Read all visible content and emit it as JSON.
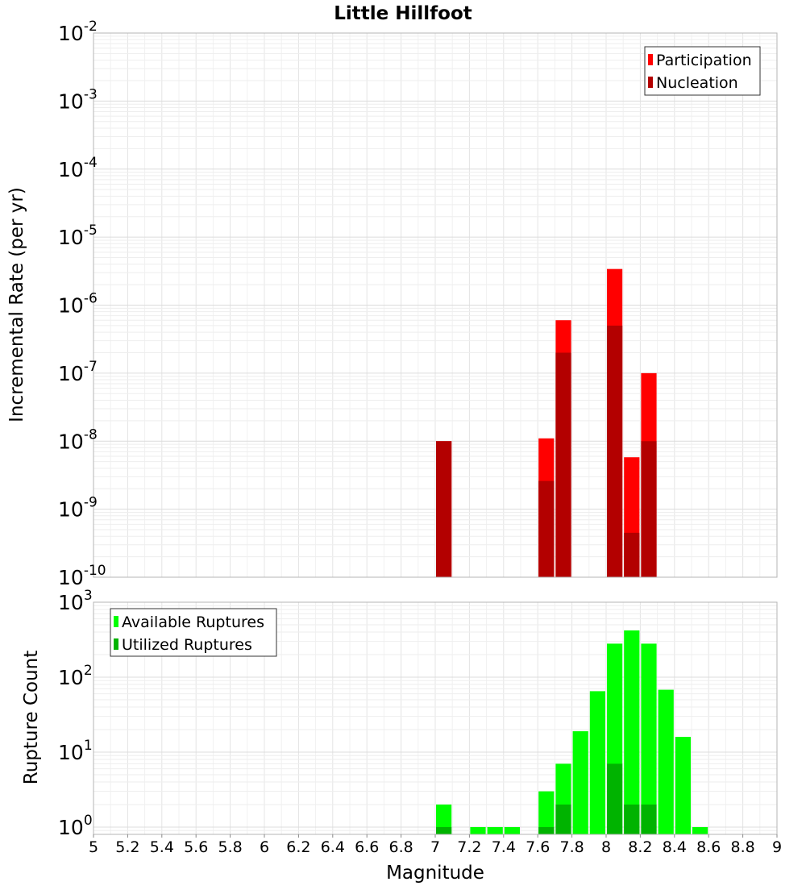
{
  "chart_data": [
    {
      "type": "bar",
      "title": "Little Hillfoot",
      "xlabel": "",
      "ylabel": "Incremental Rate (per yr)",
      "xlim": [
        5,
        9
      ],
      "ylim": [
        1e-10,
        0.01
      ],
      "y_scale": "log",
      "grid": true,
      "legend_position": "top-right",
      "bin_width": 0.1,
      "series": [
        {
          "name": "Participation",
          "color": "#ff0000",
          "x": [
            7.05,
            7.65,
            7.75,
            8.05,
            8.15,
            8.25
          ],
          "values": [
            1e-08,
            1.1e-08,
            6e-07,
            3.4e-06,
            5.8e-09,
            1e-07
          ]
        },
        {
          "name": "Nucleation",
          "color": "#b30000",
          "x": [
            7.05,
            7.65,
            7.75,
            8.05,
            8.15,
            8.25
          ],
          "values": [
            1e-08,
            2.6e-09,
            2e-07,
            5e-07,
            4.5e-10,
            1e-08
          ]
        }
      ],
      "y_tick_exponents": [
        -10,
        -9,
        -8,
        -7,
        -6,
        -5,
        -4,
        -3,
        -2
      ]
    },
    {
      "type": "bar",
      "title": "",
      "xlabel": "Magnitude",
      "ylabel": "Rupture Count",
      "xlim": [
        5,
        9
      ],
      "ylim": [
        0.8,
        1000
      ],
      "y_scale": "log",
      "grid": true,
      "legend_position": "top-left",
      "bin_width": 0.1,
      "series": [
        {
          "name": "Available Ruptures",
          "color": "#00ff00",
          "x": [
            7.05,
            7.25,
            7.35,
            7.45,
            7.65,
            7.75,
            7.85,
            7.95,
            8.05,
            8.15,
            8.25,
            8.35,
            8.45,
            8.55
          ],
          "values": [
            2,
            1,
            1,
            1,
            3,
            7,
            19,
            65,
            280,
            420,
            280,
            68,
            16,
            1
          ]
        },
        {
          "name": "Utilized Ruptures",
          "color": "#00b300",
          "x": [
            7.05,
            7.65,
            7.75,
            8.05,
            8.15,
            8.25
          ],
          "values": [
            1,
            1,
            2,
            7,
            2,
            2
          ]
        }
      ],
      "y_tick_exponents": [
        0,
        1,
        2,
        3
      ],
      "x_ticks": [
        "5",
        "5.2",
        "5.4",
        "5.6",
        "5.8",
        "6",
        "6.2",
        "6.4",
        "6.6",
        "6.8",
        "7",
        "7.2",
        "7.4",
        "7.6",
        "7.8",
        "8",
        "8.2",
        "8.4",
        "8.6",
        "8.8",
        "9"
      ]
    }
  ]
}
